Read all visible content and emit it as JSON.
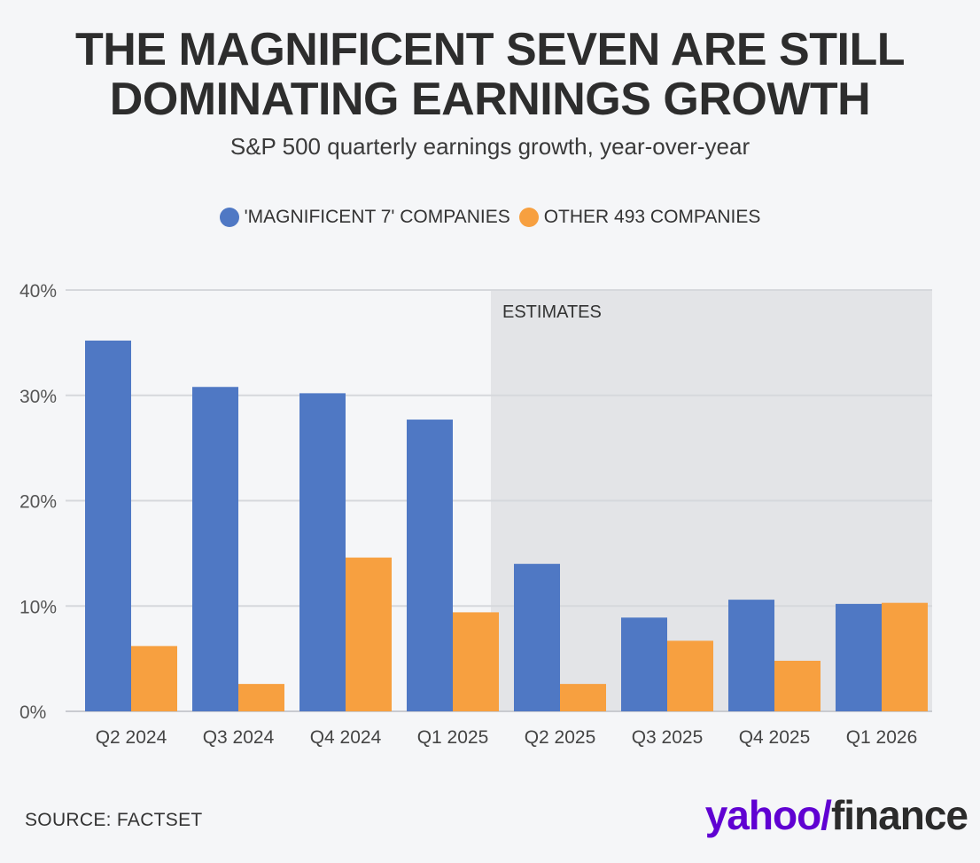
{
  "header": {
    "title_line1": "THE MAGNIFICENT SEVEN ARE STILL",
    "title_line2": "DOMINATING EARNINGS GROWTH",
    "subtitle": "S&P 500 quarterly earnings growth, year-over-year"
  },
  "legend": {
    "items": [
      {
        "label": "'MAGNIFICENT 7' COMPANIES",
        "color": "#4f78c4"
      },
      {
        "label": "OTHER 493 COMPANIES",
        "color": "#f7a040"
      }
    ]
  },
  "chart_data": {
    "type": "bar",
    "categories": [
      "Q2 2024",
      "Q3 2024",
      "Q4 2024",
      "Q1 2025",
      "Q2 2025",
      "Q3 2025",
      "Q4 2025",
      "Q1 2026"
    ],
    "series": [
      {
        "name": "'MAGNIFICENT 7' COMPANIES",
        "color": "#4f78c4",
        "values": [
          35.2,
          30.8,
          30.2,
          27.7,
          14.0,
          8.9,
          10.6,
          10.2
        ]
      },
      {
        "name": "OTHER 493 COMPANIES",
        "color": "#f7a040",
        "values": [
          6.2,
          2.6,
          14.6,
          9.4,
          2.6,
          6.7,
          4.8,
          10.3
        ]
      }
    ],
    "ylim": [
      0,
      40
    ],
    "yticks": [
      "0%",
      "10%",
      "20%",
      "30%",
      "40%"
    ],
    "ytick_values": [
      0,
      10,
      20,
      30,
      40
    ],
    "grid": true,
    "legend_position": "top-center",
    "estimates": {
      "label": "ESTIMATES",
      "start_category": "Q2 2025",
      "end_category": "Q1 2026",
      "shade_color": "#e3e4e7"
    }
  },
  "footer": {
    "source": "SOURCE: FACTSET",
    "logo_yahoo": "yahoo/",
    "logo_finance": "finance"
  }
}
